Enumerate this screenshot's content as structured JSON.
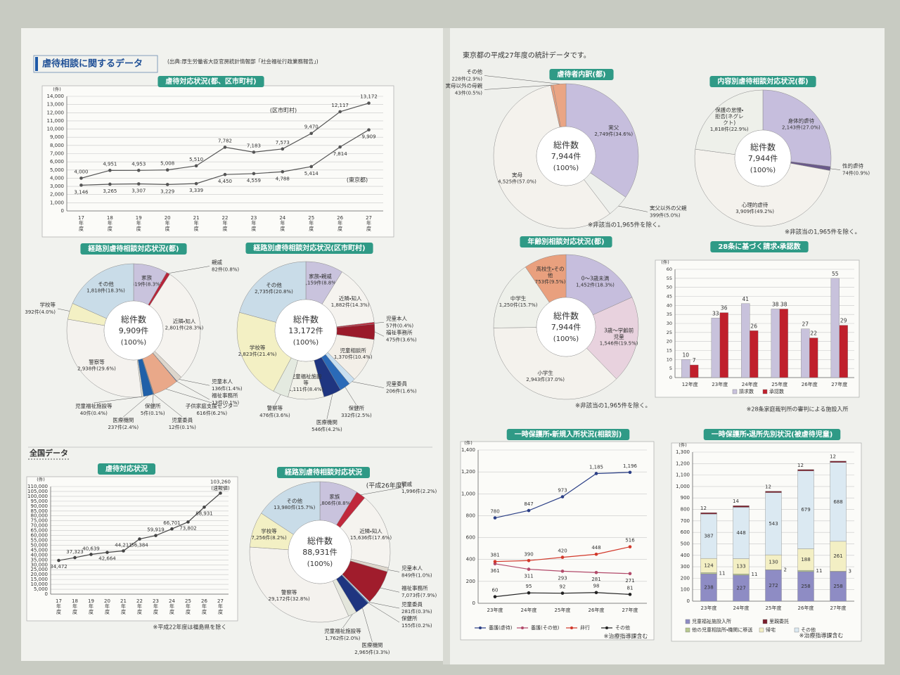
{
  "header": {
    "title": "虐待相談に関するデータ",
    "source": "(出典:厚生労働省大臣官房統計情報部「社会福祉行政業務報告」)",
    "national": "全国データ",
    "tokyo_intro": "東京都の平成27年度の統計データです。"
  },
  "chart_data": [
    {
      "type": "line",
      "title": "虐待対応状況(都、区市町村)",
      "y_unit": "(件)",
      "grid": true,
      "categories": [
        "17年度",
        "18年度",
        "19年度",
        "20年度",
        "21年度",
        "22年度",
        "23年度",
        "24年度",
        "25年度",
        "26年度",
        "27年度"
      ],
      "series": [
        {
          "name": "(区市町村)",
          "color": "#555555",
          "values": [
            4000,
            4951,
            4953,
            5008,
            5510,
            7782,
            7183,
            7573,
            9470,
            12117,
            13172
          ],
          "value_labels": [
            "4,000",
            "4,951",
            "4,953",
            "5,008",
            "5,510",
            "7,782",
            "7,183",
            "7,573",
            "9,470",
            "12,117",
            "13,172"
          ]
        },
        {
          "name": "(東京都)",
          "color": "#555555",
          "values": [
            3146,
            3265,
            3307,
            3229,
            3339,
            4450,
            4559,
            4788,
            5414,
            7814,
            9909
          ],
          "value_labels": [
            "3,146",
            "3,265",
            "3,307",
            "3,229",
            "3,339",
            "4,450",
            "4,559",
            "4,788",
            "5,414",
            "7,814",
            "9,909"
          ]
        }
      ],
      "ylim": [
        0,
        14000
      ],
      "yticks": [
        0,
        {
          "value": 1000,
          "label": "1,000"
        },
        {
          "value": 2000,
          "label": "2,000"
        },
        {
          "value": 3000,
          "label": "3,000"
        },
        {
          "value": 4000,
          "label": "4,000"
        },
        {
          "value": 5000,
          "label": "5,000"
        },
        {
          "value": 6000,
          "label": "6,000"
        },
        {
          "value": 7000,
          "label": "7,000"
        },
        {
          "value": 8000,
          "label": "8,000"
        },
        {
          "value": 9000,
          "label": "9,000"
        },
        {
          "value": 10000,
          "label": "10,000"
        },
        {
          "value": 11000,
          "label": "11,000"
        },
        {
          "value": 12000,
          "label": "12,000"
        },
        {
          "value": 13000,
          "label": "13,000"
        },
        {
          "value": 14000,
          "label": "14,000"
        }
      ]
    },
    {
      "type": "pie",
      "title": "経路別虐待相談対応状況(都)",
      "center_label": "総件数",
      "center_total": "9,909件",
      "center_share": "(100%)",
      "categories": [
        "家族",
        "親戚",
        "近隣・知人",
        "児童本人",
        "福祉事務所",
        "子供家庭支援センター",
        "児童委員",
        "保健所",
        "医療機関",
        "児童福祉施設等",
        "警察等",
        "学校等",
        "その他"
      ],
      "values": [
        819,
        82,
        2801,
        136,
        13,
        616,
        12,
        5,
        237,
        40,
        2938,
        392,
        1818
      ],
      "value_labels": [
        "819件(8.3%)",
        "82件(0.8%)",
        "2,801件(28.3%)",
        "136件(1.4%)",
        "13件(0.1%)",
        "616件(6.2%)",
        "12件(0.1%)",
        "5件(0.1%)",
        "237件(2.4%)",
        "40件(0.4%)",
        "2,938件(29.6%)",
        "392件(4.0%)",
        "1,818件(18.3%)"
      ],
      "colors": [
        "#c9c3dd",
        "#b8243a",
        "#f5f3ef",
        "#ddd6cc",
        "#1f3f8a",
        "#e9a889",
        "#2a56a8",
        "#1a80c0",
        "#2060a8",
        "#e4e6dc",
        "#f4f2ee",
        "#f3f0c4",
        "#c9dce8"
      ]
    },
    {
      "type": "pie",
      "title": "経路別虐待相談対応状況(区市町村)",
      "center_label": "総件数",
      "center_total": "13,172件",
      "center_share": "(100%)",
      "categories": [
        "家族・親戚",
        "近隣・知人",
        "児童本人",
        "福祉事務所",
        "児童相談所",
        "児童委員",
        "保健所",
        "医療機関",
        "児童福祉施設等",
        "警察等",
        "学校等",
        "その他"
      ],
      "values": [
        1159,
        1882,
        57,
        475,
        1370,
        206,
        332,
        546,
        1111,
        476,
        2823,
        2735
      ],
      "value_labels": [
        "1,159件(8.8%)",
        "1,882件(14.3%)",
        "57件(0.4%)",
        "475件(3.6%)",
        "1,370件(10.4%)",
        "206件(1.6%)",
        "332件(2.5%)",
        "546件(4.2%)",
        "1,111件(8.4%)",
        "476件(3.6%)",
        "2,823件(21.4%)",
        "2,735件(20.8%)"
      ],
      "colors": [
        "#c9c3dd",
        "#f5f3ef",
        "#c0283c",
        "#9a1a2a",
        "#f3efe8",
        "#c9dff0",
        "#2a6ab8",
        "#1f3580",
        "#f2f2ea",
        "#e4eae0",
        "#f3f0c4",
        "#c9dce8"
      ]
    },
    {
      "type": "line",
      "title": "虐待対応状況",
      "y_unit": "(件)",
      "grid": true,
      "note": "※平成22年度は福島県を除く",
      "annotation": "(速報値)",
      "categories": [
        "17年度",
        "18年度",
        "19年度",
        "20年度",
        "21年度",
        "22年度",
        "23年度",
        "24年度",
        "25年度",
        "26年度",
        "27年度"
      ],
      "series": [
        {
          "color": "#444444",
          "values": [
            34472,
            37323,
            40639,
            42664,
            44211,
            56384,
            59919,
            66701,
            73802,
            88931,
            103260
          ],
          "value_labels": [
            "34,472",
            "37,323",
            "40,639",
            "42,664",
            "44,211",
            "56,384",
            "59,919",
            "66,701",
            "73,802",
            "88,931",
            "103,260"
          ]
        }
      ],
      "ylim": [
        0,
        110000
      ],
      "yticks": [
        0,
        {
          "value": 5000,
          "label": "5,000"
        },
        {
          "value": 10000,
          "label": "10,000"
        },
        {
          "value": 15000,
          "label": "15,000"
        },
        {
          "value": 20000,
          "label": "20,000"
        },
        {
          "value": 25000,
          "label": "25,000"
        },
        {
          "value": 30000,
          "label": "30,000"
        },
        {
          "value": 35000,
          "label": "35,000"
        },
        {
          "value": 40000,
          "label": "40,000"
        },
        {
          "value": 45000,
          "label": "45,000"
        },
        {
          "value": 50000,
          "label": "50,000"
        },
        {
          "value": 55000,
          "label": "55,000"
        },
        {
          "value": 60000,
          "label": "60,000"
        },
        {
          "value": 65000,
          "label": "65,000"
        },
        {
          "value": 70000,
          "label": "70,000"
        },
        {
          "value": 75000,
          "label": "75,000"
        },
        {
          "value": 80000,
          "label": "80,000"
        },
        {
          "value": 85000,
          "label": "85,000"
        },
        {
          "value": 90000,
          "label": "90,000"
        },
        {
          "value": 95000,
          "label": "95,000"
        },
        {
          "value": 100000,
          "label": "100,000"
        },
        {
          "value": 105000,
          "label": "105,000"
        },
        {
          "value": 110000,
          "label": "110,000"
        }
      ]
    },
    {
      "type": "pie",
      "title": "経路別虐待相談対応状況",
      "subtitle": "(平成26年度)",
      "center_label": "総件数",
      "center_total": "88,931件",
      "center_share": "(100%)",
      "categories": [
        "家族",
        "親戚",
        "近隣・知人",
        "児童本人",
        "福祉事務所",
        "児童委員",
        "保健所",
        "医療機関",
        "児童福祉施設等",
        "警察等",
        "学校等",
        "その他"
      ],
      "values": [
        7806,
        1996,
        15636,
        849,
        7073,
        281,
        155,
        2965,
        1762,
        29172,
        7256,
        13980
      ],
      "value_labels": [
        "7,806件(8.8%)",
        "1,996件(2.2%)",
        "15,636件(17.6%)",
        "849件(1.0%)",
        "7,073件(7.9%)",
        "281件(0.3%)",
        "155件(0.2%)",
        "2,965件(3.3%)",
        "1,762件(2.0%)",
        "29,172件(32.8%)",
        "7,256件(8.2%)",
        "13,980件(15.7%)"
      ],
      "colors": [
        "#c9c3dd",
        "#c0283c",
        "#f5f3ef",
        "#ddd6cc",
        "#a01c2c",
        "#c9dff0",
        "#2a6ab8",
        "#1f3580",
        "#e4e6dc",
        "#f4f2ee",
        "#f3f0c4",
        "#c9dce8"
      ]
    },
    {
      "type": "pie",
      "title": "虐待者内訳(都)",
      "center_label": "総件数",
      "center_total": "7,944件",
      "center_share": "(100%)",
      "note": "※非該当の1,965件を除く。",
      "categories": [
        "実父",
        "実父以外の父親",
        "実母",
        "実母以外の母親",
        "その他"
      ],
      "values": [
        2749,
        399,
        4525,
        43,
        228
      ],
      "value_labels": [
        "2,749件(34.6%)",
        "399件(5.0%)",
        "4,525件(57.0%)",
        "43件(0.5%)",
        "228件(2.9%)"
      ],
      "colors": [
        "#c6bedd",
        "#eef0ec",
        "#f4f2ed",
        "#e9a07e",
        "#eaa584"
      ]
    },
    {
      "type": "pie",
      "title": "内容別虐待相談対応状況(都)",
      "center_label": "総件数",
      "center_total": "7,944件",
      "center_share": "(100%)",
      "note": "※非該当の1,965件を除く。",
      "categories": [
        "身体的虐待",
        "性的虐待",
        "心理的虐待",
        "保護の怠慢・拒否(ネグレクト)"
      ],
      "values": [
        2143,
        74,
        3909,
        1818
      ],
      "value_labels": [
        "2,143件(27.0%)",
        "74件(0.9%)",
        "3,909件(49.2%)",
        "1,818件(22.9%)"
      ],
      "colors": [
        "#c6bedd",
        "#6a5a8a",
        "#f4f2ed",
        "#eef0ea"
      ]
    },
    {
      "type": "pie",
      "title": "年齢別相談対応状況(都)",
      "center_label": "総件数",
      "center_total": "7,944件",
      "center_share": "(100%)",
      "note": "※非該当の1,965件を除く。",
      "categories": [
        "0〜3歳未満",
        "3歳〜学齢前児童",
        "小学生",
        "中学生",
        "高校生・その他"
      ],
      "values": [
        1452,
        1546,
        2943,
        1250,
        753
      ],
      "value_labels": [
        "1,452件(18.3%)",
        "1,546件(19.5%)",
        "2,943件(37.0%)",
        "1,250件(15.7%)",
        "753件(9.5%)"
      ],
      "colors": [
        "#c6bedd",
        "#e8d2de",
        "#f4f2ed",
        "#eef0ea",
        "#e9a07e"
      ]
    },
    {
      "type": "bar",
      "title": "28条に基づく請求・承認数",
      "y_unit": "(件)",
      "grid": true,
      "note": "※28条家庭裁判所の審判による施設入所",
      "categories": [
        "12年度",
        "23年度",
        "24年度",
        "25年度",
        "26年度",
        "27年度"
      ],
      "series": [
        {
          "name": "請求数",
          "color": "#c8c2dc",
          "values": [
            10,
            33,
            41,
            38,
            27,
            55
          ]
        },
        {
          "name": "承認数",
          "color": "#c0202c",
          "values": [
            7,
            36,
            26,
            38,
            22,
            29
          ]
        }
      ],
      "ylim": [
        0,
        60
      ],
      "yticks": [
        0,
        5,
        10,
        15,
        20,
        25,
        30,
        35,
        40,
        45,
        50,
        55,
        60
      ]
    },
    {
      "type": "line",
      "title": "一時保護所・新規入所状況(相談別)",
      "y_unit": "(件)",
      "grid": true,
      "note": "※治療指導課含む",
      "categories": [
        "23年度",
        "24年度",
        "25年度",
        "26年度",
        "27年度"
      ],
      "series": [
        {
          "name": "養護(虐待)",
          "color": "#2b3f86",
          "values": [
            780,
            847,
            973,
            1185,
            1196
          ],
          "value_labels": [
            "780",
            "847",
            "973",
            "1,185",
            "1,196"
          ]
        },
        {
          "name": "養護(その他)",
          "color": "#b24a6a",
          "values": [
            361,
            311,
            293,
            281,
            271
          ]
        },
        {
          "name": "非行",
          "color": "#d2382a",
          "values": [
            381,
            390,
            420,
            448,
            516
          ]
        },
        {
          "name": "その他",
          "color": "#222222",
          "values": [
            60,
            95,
            92,
            98,
            81
          ]
        }
      ],
      "ylim": [
        0,
        1400
      ],
      "yticks": [
        0,
        200,
        400,
        600,
        800,
        {
          "value": 1000,
          "label": "1,000"
        },
        {
          "value": 1200,
          "label": "1,200"
        },
        {
          "value": 1400,
          "label": "1,400"
        }
      ]
    },
    {
      "type": "stacked_bar",
      "title": "一時保護所・退所先別状況(被虐待児童)",
      "y_unit": "(件)",
      "grid": true,
      "note": "※治療指導課含む",
      "categories": [
        "23年度",
        "24年度",
        "25年度",
        "26年度",
        "27年度"
      ],
      "series": [
        {
          "name": "児童福祉施設入所",
          "color": "#8e8cc4",
          "values": [
            238,
            227,
            272,
            258,
            258
          ]
        },
        {
          "name": "他の児童相談所・機関に移送",
          "color": "#b8c890",
          "values": [
            11,
            11,
            2,
            11,
            3
          ]
        },
        {
          "name": "帰宅",
          "color": "#f3efc4",
          "values": [
            124,
            133,
            130,
            188,
            261
          ]
        },
        {
          "name": "その他",
          "color": "#dbe9f2",
          "values": [
            387,
            448,
            543,
            679,
            688
          ]
        },
        {
          "name": "里親委託",
          "color": "#7a1e2c",
          "values": [
            12,
            14,
            12,
            12,
            12
          ]
        }
      ],
      "ylim": [
        0,
        1300
      ],
      "yticks": [
        0,
        100,
        200,
        300,
        400,
        500,
        600,
        700,
        800,
        900,
        {
          "value": 1000,
          "label": "1,000"
        },
        {
          "value": 1100,
          "label": "1,100"
        },
        {
          "value": 1200,
          "label": "1,200"
        },
        {
          "value": 1300,
          "label": "1,300"
        }
      ]
    }
  ]
}
